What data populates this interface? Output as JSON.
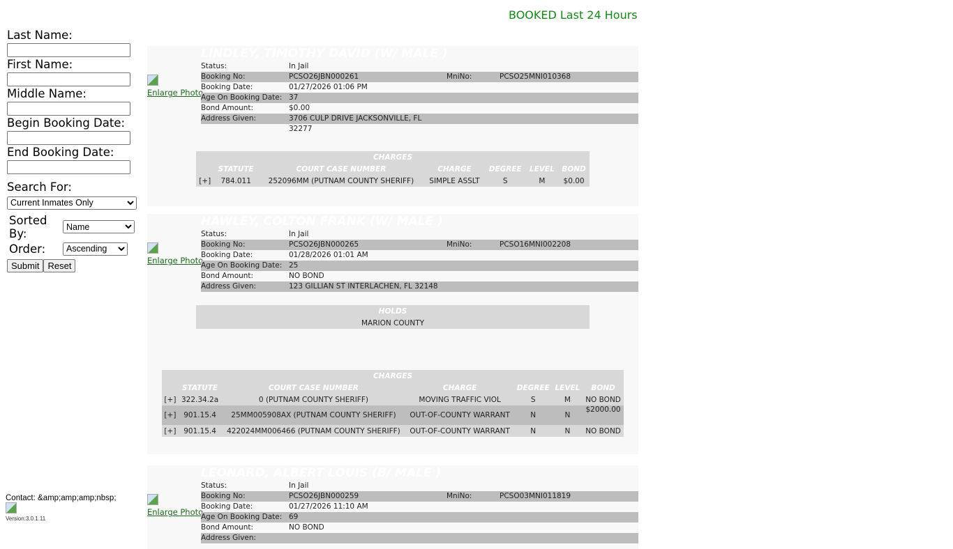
{
  "header": {
    "title": "BOOKED Last 24 Hours"
  },
  "search": {
    "last_name": "Last Name:",
    "first_name": "First Name:",
    "middle_name": "Middle Name:",
    "begin_date": "Begin Booking Date:",
    "end_date": "End Booking Date:",
    "search_for": "Search For:",
    "search_for_value": "Current Inmates Only",
    "sorted_by": "Sorted By:",
    "sorted_by_value": "Name",
    "order": "Order:",
    "order_value": "Ascending",
    "submit": "Submit",
    "reset": "Reset"
  },
  "footer": {
    "contact": "Contact: &amp;amp;amp;nbsp;",
    "version": "Version:3.0.1.11"
  },
  "labels": {
    "status": "Status:",
    "booking_no": "Booking No:",
    "mni_no": "MniNo:",
    "booking_date": "Booking Date:",
    "age": "Age On Booking Date:",
    "bond": "Bond Amount:",
    "address": "Address Given:",
    "enlarge": "Enlarge Photo",
    "charges": "CHARGES",
    "holds": "HOLDS",
    "cols": [
      "STATUTE",
      "COURT CASE NUMBER",
      "CHARGE",
      "DEGREE",
      "LEVEL",
      "BOND"
    ]
  },
  "records": [
    {
      "name": "LINDLEY, TIMOTHY DAVID  (W/ MALE )",
      "status": "In Jail",
      "booking_no": "PCSO26JBN000261",
      "mni_no": "PCSO25MNI010368",
      "booking_date": "01/27/2026 01:06 PM",
      "age": "37",
      "bond": "$0.00",
      "address": "3706 CULP DRIVE JACKSONVILLE, FL 32277",
      "charges": [
        [
          "[+]",
          "784.011",
          "252096MM (PUTNAM COUNTY SHERIFF)",
          "SIMPLE ASSLT",
          "S",
          "M",
          "$0.00"
        ]
      ]
    },
    {
      "name": "HAWLEY, COLTON FRANK  (W/ MALE )",
      "status": "In Jail",
      "booking_no": "PCSO26JBN000265",
      "mni_no": "PCSO16MNI002208",
      "booking_date": "01/28/2026 01:01 AM",
      "age": "25",
      "bond": "NO BOND",
      "address": "123 GILLIAN ST INTERLACHEN, FL 32148",
      "holds": [
        "MARION COUNTY"
      ],
      "charges": [
        [
          "[+]",
          "322.34.2a",
          "0 (PUTNAM COUNTY SHERIFF)",
          "MOVING TRAFFIC VIOL",
          "S",
          "M",
          "NO BOND"
        ],
        [
          "[+]",
          "901.15.4",
          "25MM005908AX (PUTNAM COUNTY SHERIFF)",
          "OUT-OF-COUNTY WARRANT",
          "N",
          "N",
          "$2000.00"
        ],
        [
          "[+]",
          "901.15.4",
          "422024MM006466 (PUTNAM COUNTY SHERIFF)",
          "OUT-OF-COUNTY WARRANT",
          "N",
          "N",
          "NO BOND"
        ]
      ]
    },
    {
      "name": "LEONARD, ALBERT LOUIS  (B/ MALE )",
      "status": "In Jail",
      "booking_no": "PCSO26JBN000259",
      "mni_no": "PCSO03MNI011819",
      "booking_date": "01/27/2026 11:10 AM",
      "age": "69",
      "bond": "NO BOND",
      "address": ""
    }
  ]
}
